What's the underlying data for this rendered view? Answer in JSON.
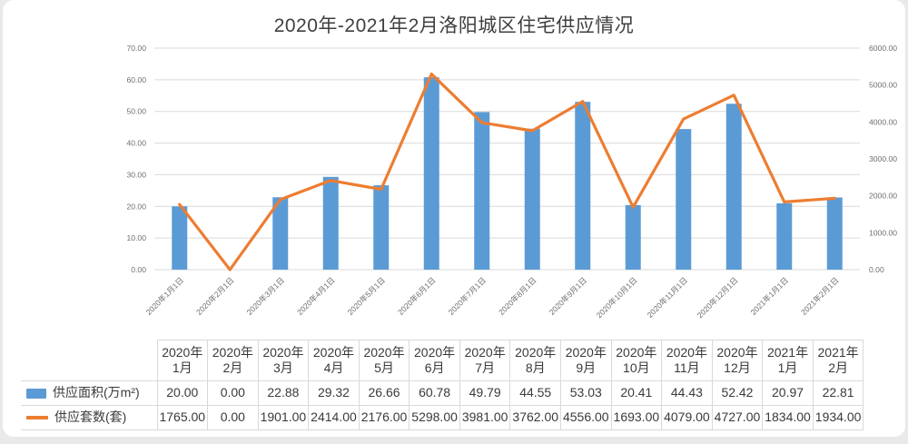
{
  "window": {
    "background": "#e9e9e9",
    "card_background": "#ffffff"
  },
  "chart_data": {
    "type": "combo",
    "title": "2020年-2021年2月洛阳城区住宅供应情况",
    "categories": [
      "2020年1月1日",
      "2020年2月1日",
      "2020年3月1日",
      "2020年4月1日",
      "2020年5月1日",
      "2020年6月1日",
      "2020年7月1日",
      "2020年8月1日",
      "2020年9月1日",
      "2020年10月1日",
      "2020年11月1日",
      "2020年12月1日",
      "2021年1月1日",
      "2021年2月1日"
    ],
    "series": [
      {
        "name": "供应面积(万m²)",
        "type": "bar",
        "axis": "left",
        "color": "#5B9BD5",
        "values": [
          20.0,
          0.0,
          22.88,
          29.32,
          26.66,
          60.78,
          49.79,
          44.55,
          53.03,
          20.41,
          44.43,
          52.42,
          20.97,
          22.81
        ]
      },
      {
        "name": "供应套数(套)",
        "type": "line",
        "axis": "right",
        "color": "#ED7D31",
        "values": [
          1765,
          0,
          1901,
          2414,
          2176,
          5298,
          3981,
          3762,
          4556,
          1693,
          4079,
          4727,
          1834,
          1934
        ]
      }
    ],
    "left_axis": {
      "min": 0,
      "max": 70,
      "ticks": [
        "0.00",
        "10.00",
        "20.00",
        "30.00",
        "40.00",
        "50.00",
        "60.00",
        "70.00"
      ]
    },
    "right_axis": {
      "min": 0,
      "max": 6000,
      "ticks": [
        "0.00",
        "1000.00",
        "2000.00",
        "3000.00",
        "4000.00",
        "5000.00",
        "6000.00"
      ]
    },
    "grid": true,
    "legend_position": "data-table",
    "colors": {
      "grid": "#d9d9d9",
      "axis_text": "#6f6f6f",
      "title_text": "#3f3f3f"
    }
  },
  "data_table": {
    "column_headers": [
      {
        "line1": "2020年",
        "line2": "1月"
      },
      {
        "line1": "2020年",
        "line2": "2月"
      },
      {
        "line1": "2020年",
        "line2": "3月"
      },
      {
        "line1": "2020年",
        "line2": "4月"
      },
      {
        "line1": "2020年",
        "line2": "5月"
      },
      {
        "line1": "2020年",
        "line2": "6月"
      },
      {
        "line1": "2020年",
        "line2": "7月"
      },
      {
        "line1": "2020年",
        "line2": "8月"
      },
      {
        "line1": "2020年",
        "line2": "9月"
      },
      {
        "line1": "2020年",
        "line2": "10月"
      },
      {
        "line1": "2020年",
        "line2": "11月"
      },
      {
        "line1": "2020年",
        "line2": "12月"
      },
      {
        "line1": "2021年",
        "line2": "1月"
      },
      {
        "line1": "2021年",
        "line2": "2月"
      }
    ],
    "rows": [
      {
        "label": "供应面积(万m²)",
        "swatch": "bar",
        "values": [
          "20.00",
          "0.00",
          "22.88",
          "29.32",
          "26.66",
          "60.78",
          "49.79",
          "44.55",
          "53.03",
          "20.41",
          "44.43",
          "52.42",
          "20.97",
          "22.81"
        ]
      },
      {
        "label": "供应套数(套)",
        "swatch": "line",
        "values": [
          "1765.00",
          "0.00",
          "1901.00",
          "2414.00",
          "2176.00",
          "5298.00",
          "3981.00",
          "3762.00",
          "4556.00",
          "1693.00",
          "4079.00",
          "4727.00",
          "1834.00",
          "1934.00"
        ]
      }
    ]
  }
}
